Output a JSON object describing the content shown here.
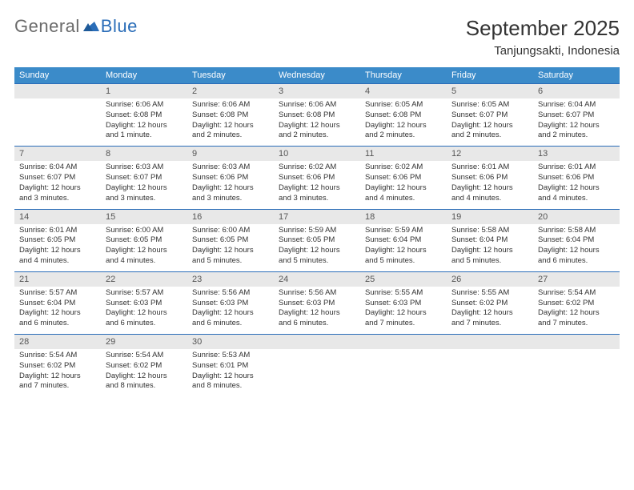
{
  "logo": {
    "general": "General",
    "blue": "Blue"
  },
  "title": "September 2025",
  "location": "Tanjungsakti, Indonesia",
  "colors": {
    "header_bg": "#3b8bc9",
    "header_text": "#ffffff",
    "daynum_bg": "#e8e8e8",
    "daynum_text": "#555555",
    "rule": "#2a6db8",
    "body_text": "#333333",
    "logo_gray": "#6b6b6b",
    "logo_blue": "#2a6db8"
  },
  "dow": [
    "Sunday",
    "Monday",
    "Tuesday",
    "Wednesday",
    "Thursday",
    "Friday",
    "Saturday"
  ],
  "weeks": [
    [
      null,
      {
        "n": "1",
        "sr": "Sunrise: 6:06 AM",
        "ss": "Sunset: 6:08 PM",
        "d1": "Daylight: 12 hours",
        "d2": "and 1 minute."
      },
      {
        "n": "2",
        "sr": "Sunrise: 6:06 AM",
        "ss": "Sunset: 6:08 PM",
        "d1": "Daylight: 12 hours",
        "d2": "and 2 minutes."
      },
      {
        "n": "3",
        "sr": "Sunrise: 6:06 AM",
        "ss": "Sunset: 6:08 PM",
        "d1": "Daylight: 12 hours",
        "d2": "and 2 minutes."
      },
      {
        "n": "4",
        "sr": "Sunrise: 6:05 AM",
        "ss": "Sunset: 6:08 PM",
        "d1": "Daylight: 12 hours",
        "d2": "and 2 minutes."
      },
      {
        "n": "5",
        "sr": "Sunrise: 6:05 AM",
        "ss": "Sunset: 6:07 PM",
        "d1": "Daylight: 12 hours",
        "d2": "and 2 minutes."
      },
      {
        "n": "6",
        "sr": "Sunrise: 6:04 AM",
        "ss": "Sunset: 6:07 PM",
        "d1": "Daylight: 12 hours",
        "d2": "and 2 minutes."
      }
    ],
    [
      {
        "n": "7",
        "sr": "Sunrise: 6:04 AM",
        "ss": "Sunset: 6:07 PM",
        "d1": "Daylight: 12 hours",
        "d2": "and 3 minutes."
      },
      {
        "n": "8",
        "sr": "Sunrise: 6:03 AM",
        "ss": "Sunset: 6:07 PM",
        "d1": "Daylight: 12 hours",
        "d2": "and 3 minutes."
      },
      {
        "n": "9",
        "sr": "Sunrise: 6:03 AM",
        "ss": "Sunset: 6:06 PM",
        "d1": "Daylight: 12 hours",
        "d2": "and 3 minutes."
      },
      {
        "n": "10",
        "sr": "Sunrise: 6:02 AM",
        "ss": "Sunset: 6:06 PM",
        "d1": "Daylight: 12 hours",
        "d2": "and 3 minutes."
      },
      {
        "n": "11",
        "sr": "Sunrise: 6:02 AM",
        "ss": "Sunset: 6:06 PM",
        "d1": "Daylight: 12 hours",
        "d2": "and 4 minutes."
      },
      {
        "n": "12",
        "sr": "Sunrise: 6:01 AM",
        "ss": "Sunset: 6:06 PM",
        "d1": "Daylight: 12 hours",
        "d2": "and 4 minutes."
      },
      {
        "n": "13",
        "sr": "Sunrise: 6:01 AM",
        "ss": "Sunset: 6:06 PM",
        "d1": "Daylight: 12 hours",
        "d2": "and 4 minutes."
      }
    ],
    [
      {
        "n": "14",
        "sr": "Sunrise: 6:01 AM",
        "ss": "Sunset: 6:05 PM",
        "d1": "Daylight: 12 hours",
        "d2": "and 4 minutes."
      },
      {
        "n": "15",
        "sr": "Sunrise: 6:00 AM",
        "ss": "Sunset: 6:05 PM",
        "d1": "Daylight: 12 hours",
        "d2": "and 4 minutes."
      },
      {
        "n": "16",
        "sr": "Sunrise: 6:00 AM",
        "ss": "Sunset: 6:05 PM",
        "d1": "Daylight: 12 hours",
        "d2": "and 5 minutes."
      },
      {
        "n": "17",
        "sr": "Sunrise: 5:59 AM",
        "ss": "Sunset: 6:05 PM",
        "d1": "Daylight: 12 hours",
        "d2": "and 5 minutes."
      },
      {
        "n": "18",
        "sr": "Sunrise: 5:59 AM",
        "ss": "Sunset: 6:04 PM",
        "d1": "Daylight: 12 hours",
        "d2": "and 5 minutes."
      },
      {
        "n": "19",
        "sr": "Sunrise: 5:58 AM",
        "ss": "Sunset: 6:04 PM",
        "d1": "Daylight: 12 hours",
        "d2": "and 5 minutes."
      },
      {
        "n": "20",
        "sr": "Sunrise: 5:58 AM",
        "ss": "Sunset: 6:04 PM",
        "d1": "Daylight: 12 hours",
        "d2": "and 6 minutes."
      }
    ],
    [
      {
        "n": "21",
        "sr": "Sunrise: 5:57 AM",
        "ss": "Sunset: 6:04 PM",
        "d1": "Daylight: 12 hours",
        "d2": "and 6 minutes."
      },
      {
        "n": "22",
        "sr": "Sunrise: 5:57 AM",
        "ss": "Sunset: 6:03 PM",
        "d1": "Daylight: 12 hours",
        "d2": "and 6 minutes."
      },
      {
        "n": "23",
        "sr": "Sunrise: 5:56 AM",
        "ss": "Sunset: 6:03 PM",
        "d1": "Daylight: 12 hours",
        "d2": "and 6 minutes."
      },
      {
        "n": "24",
        "sr": "Sunrise: 5:56 AM",
        "ss": "Sunset: 6:03 PM",
        "d1": "Daylight: 12 hours",
        "d2": "and 6 minutes."
      },
      {
        "n": "25",
        "sr": "Sunrise: 5:55 AM",
        "ss": "Sunset: 6:03 PM",
        "d1": "Daylight: 12 hours",
        "d2": "and 7 minutes."
      },
      {
        "n": "26",
        "sr": "Sunrise: 5:55 AM",
        "ss": "Sunset: 6:02 PM",
        "d1": "Daylight: 12 hours",
        "d2": "and 7 minutes."
      },
      {
        "n": "27",
        "sr": "Sunrise: 5:54 AM",
        "ss": "Sunset: 6:02 PM",
        "d1": "Daylight: 12 hours",
        "d2": "and 7 minutes."
      }
    ],
    [
      {
        "n": "28",
        "sr": "Sunrise: 5:54 AM",
        "ss": "Sunset: 6:02 PM",
        "d1": "Daylight: 12 hours",
        "d2": "and 7 minutes."
      },
      {
        "n": "29",
        "sr": "Sunrise: 5:54 AM",
        "ss": "Sunset: 6:02 PM",
        "d1": "Daylight: 12 hours",
        "d2": "and 8 minutes."
      },
      {
        "n": "30",
        "sr": "Sunrise: 5:53 AM",
        "ss": "Sunset: 6:01 PM",
        "d1": "Daylight: 12 hours",
        "d2": "and 8 minutes."
      },
      null,
      null,
      null,
      null
    ]
  ]
}
